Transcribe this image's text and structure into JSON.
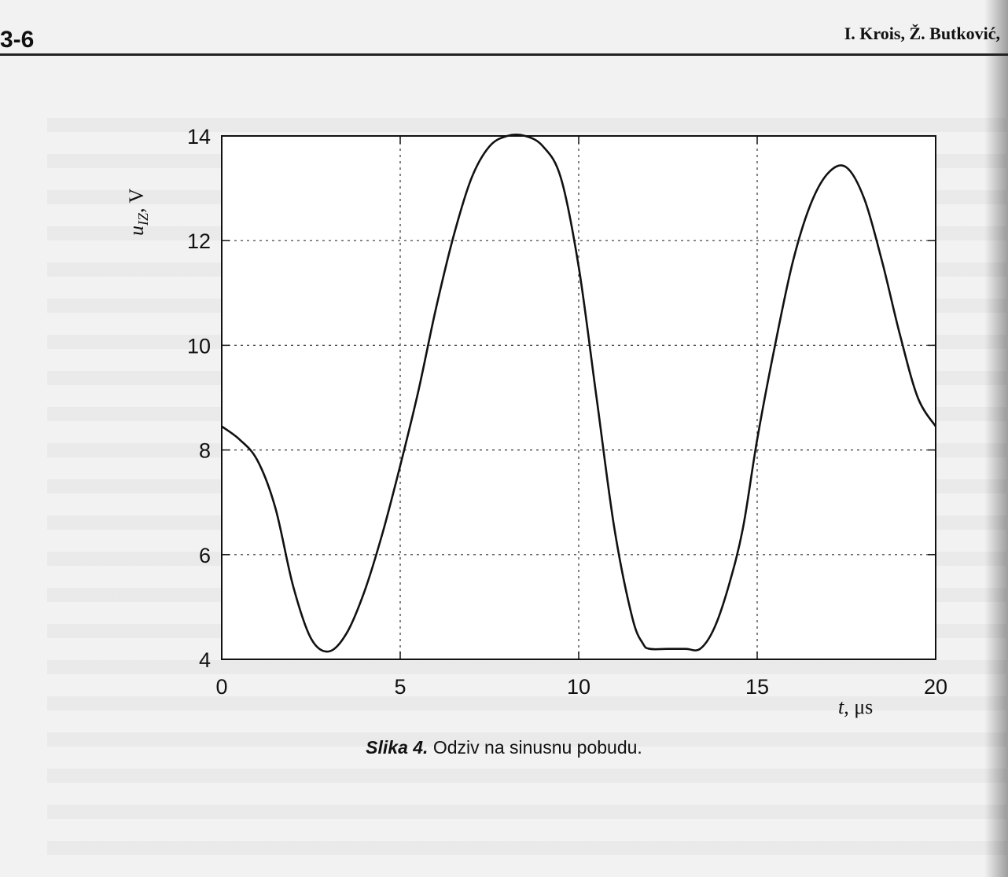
{
  "header": {
    "page_number": "3-6",
    "authors": "I. Krois, Ž. Butković,"
  },
  "caption": {
    "figure": "Slika 4.",
    "text": "Odziv na sinusnu pobudu."
  },
  "chart_data": {
    "type": "line",
    "ylabel_main": "u",
    "ylabel_sub": "IZ",
    "ylabel_unit": ", V",
    "xlabel_main": "t",
    "xlabel_unit": ", μs",
    "xlim": [
      0,
      20
    ],
    "ylim": [
      4,
      14
    ],
    "xticks": [
      0,
      5,
      10,
      15,
      20
    ],
    "yticks": [
      4,
      6,
      8,
      10,
      12,
      14
    ],
    "yticks_labeled": [
      4,
      6,
      8,
      10,
      12,
      14
    ],
    "grid": true,
    "line_color": "#111111",
    "series": [
      {
        "x": [
          0,
          0.5,
          1.0,
          1.5,
          2.0,
          2.5,
          3.0,
          3.5,
          4.0,
          4.5,
          5.0,
          5.5,
          6.0,
          6.5,
          7.0,
          7.5,
          8.0,
          8.5,
          9.0,
          9.5,
          10.0,
          10.5,
          11.0,
          11.5,
          11.8,
          12.0,
          12.5,
          13.0,
          13.4,
          13.8,
          14.2,
          14.6,
          15.0,
          15.5,
          16.0,
          16.5,
          17.0,
          17.5,
          18.0,
          18.5,
          19.0,
          19.5,
          20.0
        ],
        "y": [
          8.45,
          8.2,
          7.8,
          6.9,
          5.4,
          4.4,
          4.15,
          4.5,
          5.3,
          6.4,
          7.7,
          9.1,
          10.7,
          12.1,
          13.2,
          13.8,
          14.0,
          14.0,
          13.8,
          13.2,
          11.5,
          9.0,
          6.5,
          4.8,
          4.3,
          4.2,
          4.2,
          4.2,
          4.2,
          4.6,
          5.4,
          6.5,
          8.2,
          10.0,
          11.6,
          12.7,
          13.3,
          13.4,
          12.8,
          11.6,
          10.2,
          9.0,
          8.45
        ]
      }
    ]
  }
}
